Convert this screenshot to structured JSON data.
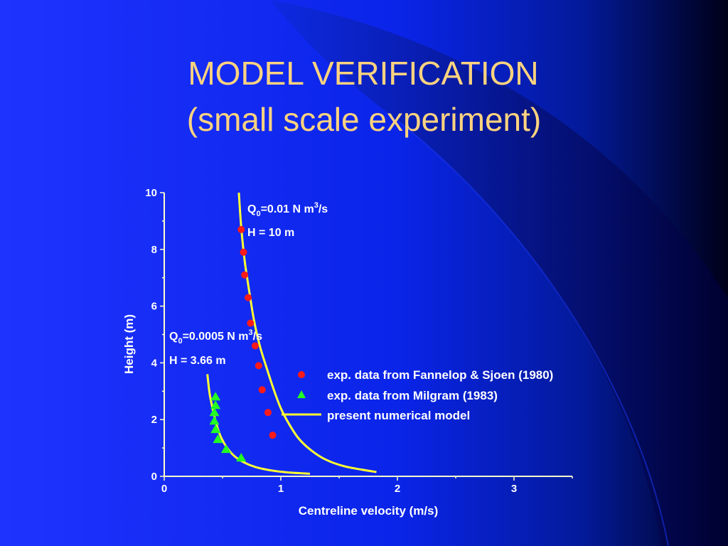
{
  "slide": {
    "title_line1": "MODEL VERIFICATION",
    "title_line2": "(small scale experiment)"
  },
  "colors": {
    "background_light": "#0f2cf2",
    "background_dark": "#000018",
    "title": "#ffd37f",
    "text": "#ffffff",
    "axis": "#ffffcc",
    "model_curve": "#ffff33",
    "fannelop_marker": "#ff1a1a",
    "milgram_marker": "#22ff22"
  },
  "chart_data": {
    "type": "scatter",
    "xlabel": "Centreline velocity (m/s)",
    "ylabel": "Height (m)",
    "xlim": [
      0,
      3.5
    ],
    "ylim": [
      0,
      10
    ],
    "x_ticks": [
      "0",
      "1",
      "2",
      "3"
    ],
    "y_ticks": [
      "0",
      "2",
      "4",
      "6",
      "8",
      "10"
    ],
    "grid": false,
    "legend_position": "right",
    "annotations": {
      "case1_q_prefix": "Q",
      "case1_q_sub": "0",
      "case1_q_mid": "=0.01 N m",
      "case1_q_sup": "3",
      "case1_q_suffix": "/s",
      "case1_h": "H = 10 m",
      "case2_q_prefix": "Q",
      "case2_q_sub": "0",
      "case2_q_mid": "=0.0005 N m",
      "case2_q_sup": "3",
      "case2_q_suffix": "/s",
      "case2_h": "H = 3.66 m"
    },
    "series": [
      {
        "name": "exp. data from Fannelop & Sjoen (1980)",
        "marker": "circle",
        "x": [
          0.66,
          0.68,
          0.69,
          0.72,
          0.74,
          0.78,
          0.81,
          0.84,
          0.89,
          0.93
        ],
        "y": [
          8.7,
          7.9,
          7.1,
          6.3,
          5.4,
          4.6,
          3.9,
          3.05,
          2.25,
          1.45
        ]
      },
      {
        "name": "exp. data from Milgram (1983)",
        "marker": "triangle",
        "x": [
          0.44,
          0.44,
          0.43,
          0.43,
          0.44,
          0.46,
          0.53,
          0.66
        ],
        "y": [
          2.8,
          2.5,
          2.25,
          1.95,
          1.65,
          1.3,
          0.95,
          0.65
        ]
      },
      {
        "name": "present numerical model",
        "marker": "line",
        "curves": [
          {
            "x": [
              0.64,
              0.66,
              0.69,
              0.73,
              0.77,
              0.82,
              0.88,
              0.94,
              1.0,
              1.07,
              1.15,
              1.25,
              1.38,
              1.55,
              1.82
            ],
            "y": [
              10.0,
              8.8,
              7.6,
              6.5,
              5.5,
              4.6,
              3.8,
              3.05,
              2.4,
              1.85,
              1.35,
              0.95,
              0.6,
              0.35,
              0.15
            ]
          },
          {
            "x": [
              0.37,
              0.39,
              0.42,
              0.45,
              0.49,
              0.54,
              0.6,
              0.68,
              0.78,
              0.9,
              1.05,
              1.25
            ],
            "y": [
              3.6,
              2.9,
              2.3,
              1.8,
              1.35,
              1.0,
              0.72,
              0.5,
              0.33,
              0.22,
              0.14,
              0.09
            ]
          }
        ]
      }
    ]
  }
}
